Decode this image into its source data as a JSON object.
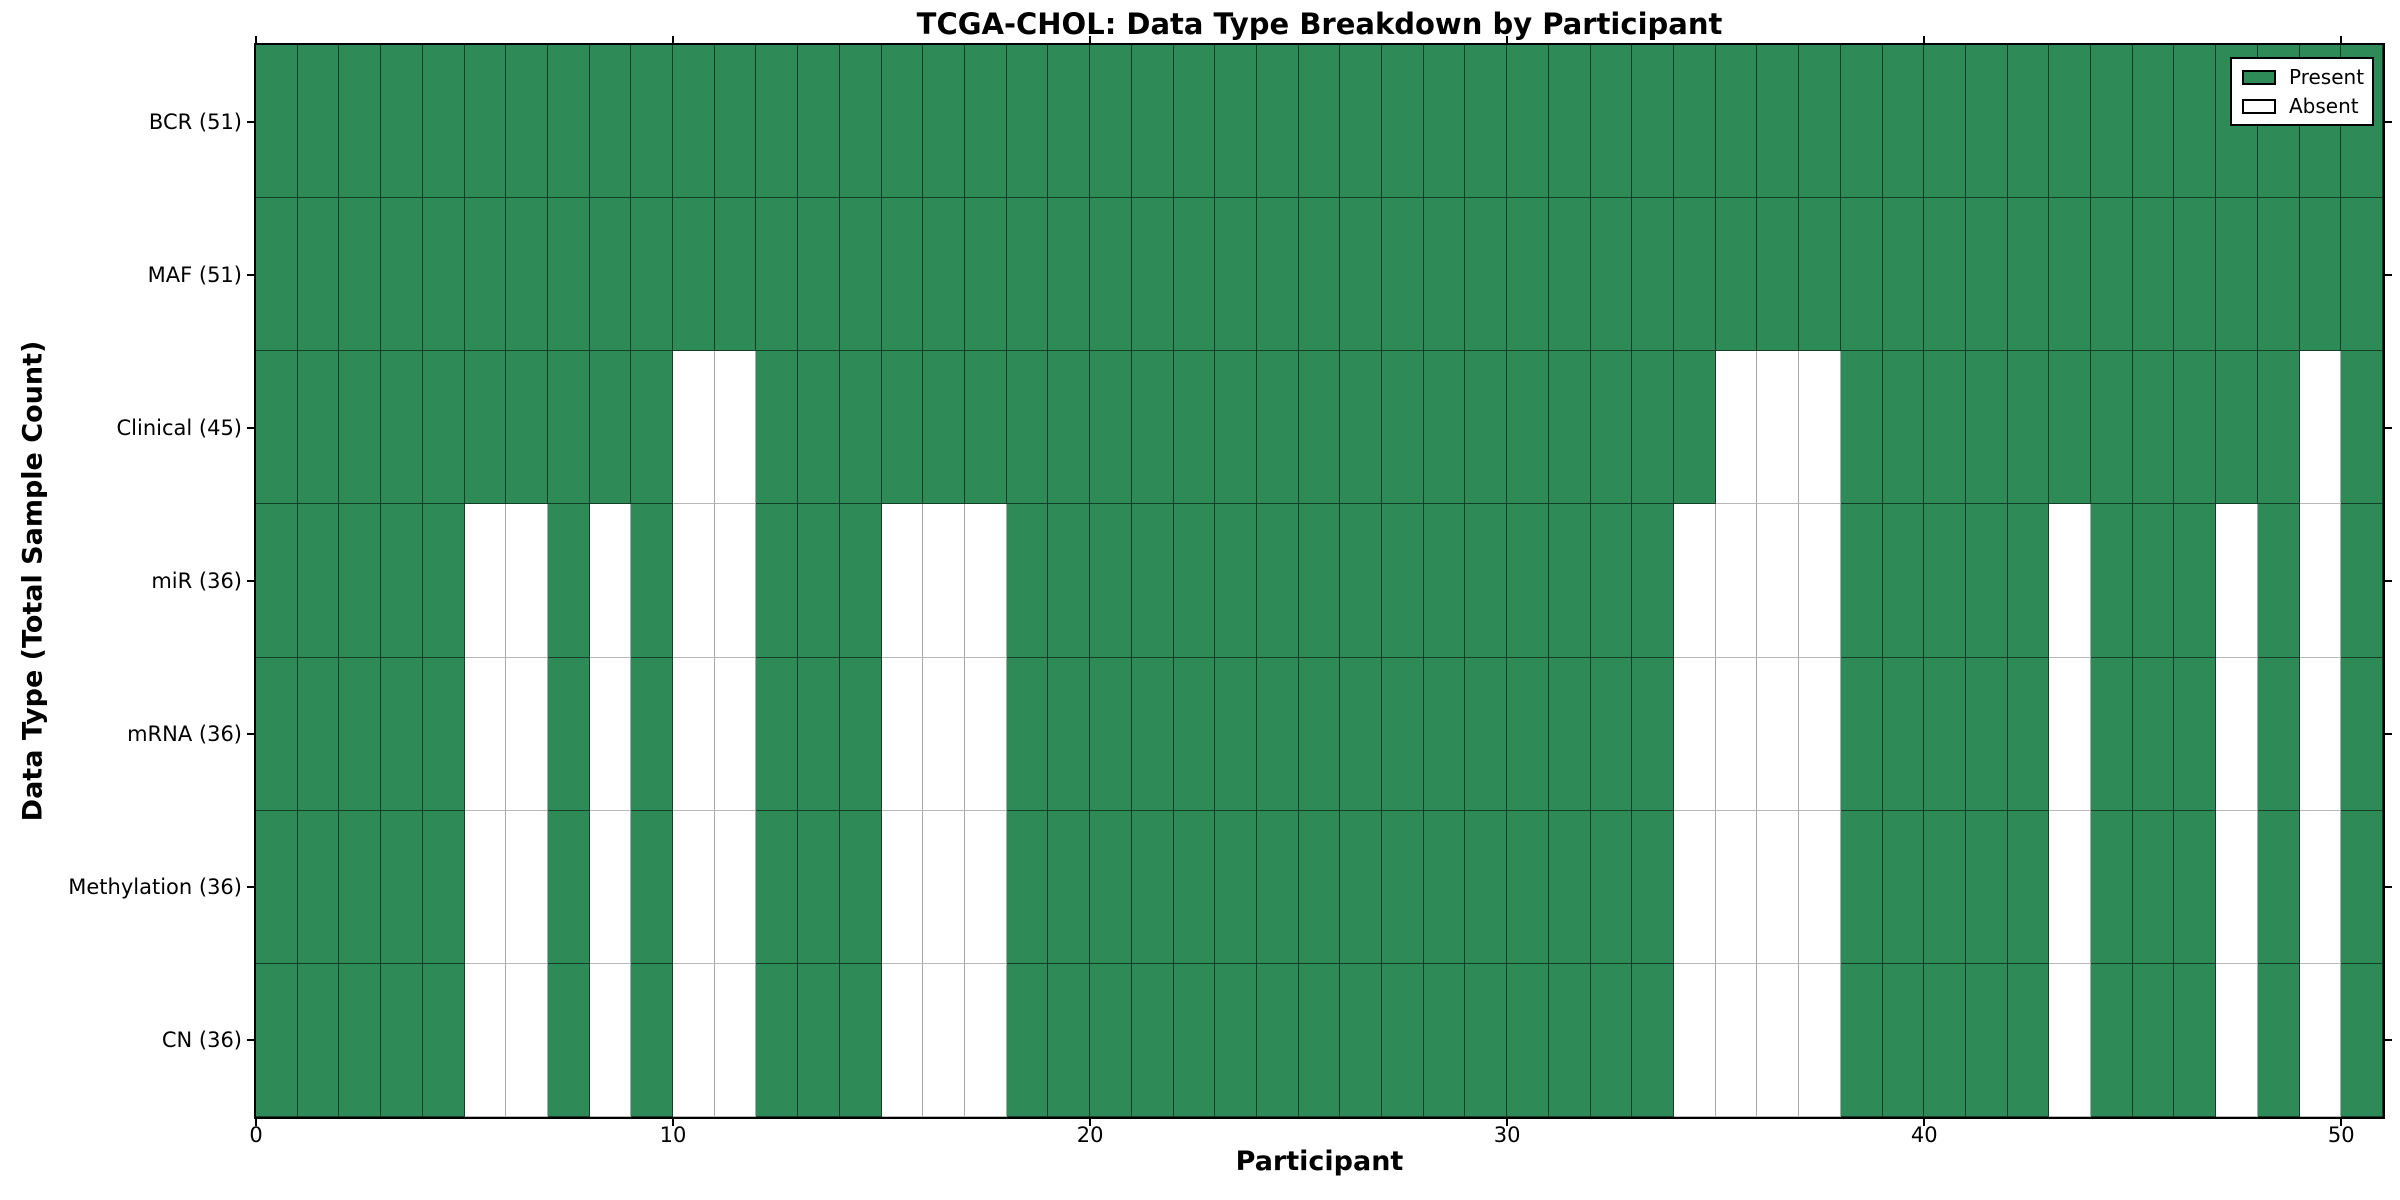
{
  "chart_data": {
    "type": "heatmap",
    "title": "TCGA-CHOL: Data Type Breakdown by Participant",
    "xlabel": "Participant",
    "ylabel": "Data Type (Total Sample Count)",
    "n_participants": 51,
    "x_range": [
      0,
      51
    ],
    "xticks": [
      0,
      10,
      20,
      30,
      40,
      50
    ],
    "grid": true,
    "legend_position": "upper right",
    "colors": {
      "present": "#2E8B57",
      "absent": "#FFFFFF"
    },
    "rows": [
      {
        "label": "BCR (51)",
        "total": 51,
        "absent_participants": []
      },
      {
        "label": "MAF (51)",
        "total": 51,
        "absent_participants": []
      },
      {
        "label": "Clinical (45)",
        "total": 45,
        "absent_participants": [
          10,
          11,
          35,
          36,
          37,
          49
        ]
      },
      {
        "label": "miR (36)",
        "total": 36,
        "absent_participants": [
          5,
          6,
          8,
          10,
          11,
          15,
          16,
          17,
          34,
          35,
          36,
          37,
          43,
          47,
          49
        ]
      },
      {
        "label": "mRNA (36)",
        "total": 36,
        "absent_participants": [
          5,
          6,
          8,
          10,
          11,
          15,
          16,
          17,
          34,
          35,
          36,
          37,
          43,
          47,
          49
        ]
      },
      {
        "label": "Methylation (36)",
        "total": 36,
        "absent_participants": [
          5,
          6,
          8,
          10,
          11,
          15,
          16,
          17,
          34,
          35,
          36,
          37,
          43,
          47,
          49
        ]
      },
      {
        "label": "CN (36)",
        "total": 36,
        "absent_participants": [
          5,
          6,
          8,
          10,
          11,
          15,
          16,
          17,
          34,
          35,
          36,
          37,
          43,
          47,
          49
        ]
      }
    ],
    "legend": [
      {
        "label": "Present",
        "color": "#2E8B57"
      },
      {
        "label": "Absent",
        "color": "#FFFFFF"
      }
    ]
  }
}
